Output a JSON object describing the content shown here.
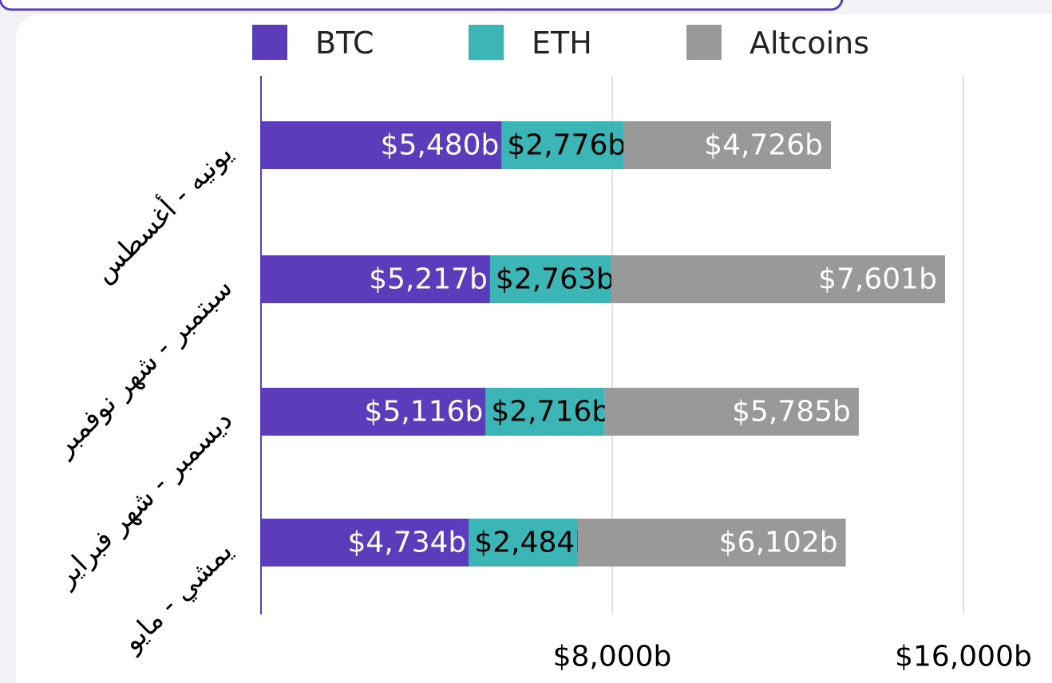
{
  "chart_data": {
    "type": "stacked_barh",
    "categories": [
      "يونيه - أغسطس",
      "سبتمبر - شهر نوفمبر",
      "ديسمبر - شهر فبراير",
      "يمشي - مايو"
    ],
    "series": [
      {
        "name": "BTC",
        "color": "#5b3cba",
        "values": [
          5480,
          5217,
          5116,
          4734
        ],
        "value_labels": [
          "$5,480b",
          "$5,217b",
          "$5,116b",
          "$4,734b"
        ]
      },
      {
        "name": "ETH",
        "color": "#3bb5b5",
        "values": [
          2776,
          2763,
          2716,
          2484
        ],
        "value_labels": [
          "$2,776b",
          "$2,763b",
          "$2,716b",
          "$2,484b"
        ]
      },
      {
        "name": "Altcoins",
        "color": "#999999",
        "values": [
          4726,
          7601,
          5785,
          6102
        ],
        "value_labels": [
          "$4,726b",
          "$7,601b",
          "$5,785b",
          "$6,102b"
        ]
      }
    ],
    "xlim": [
      0,
      16000
    ],
    "xticks": [
      {
        "value": 8000,
        "label": "$8,000b"
      },
      {
        "value": 16000,
        "label": "$16,000b"
      }
    ],
    "grid": true,
    "legend": "top"
  }
}
